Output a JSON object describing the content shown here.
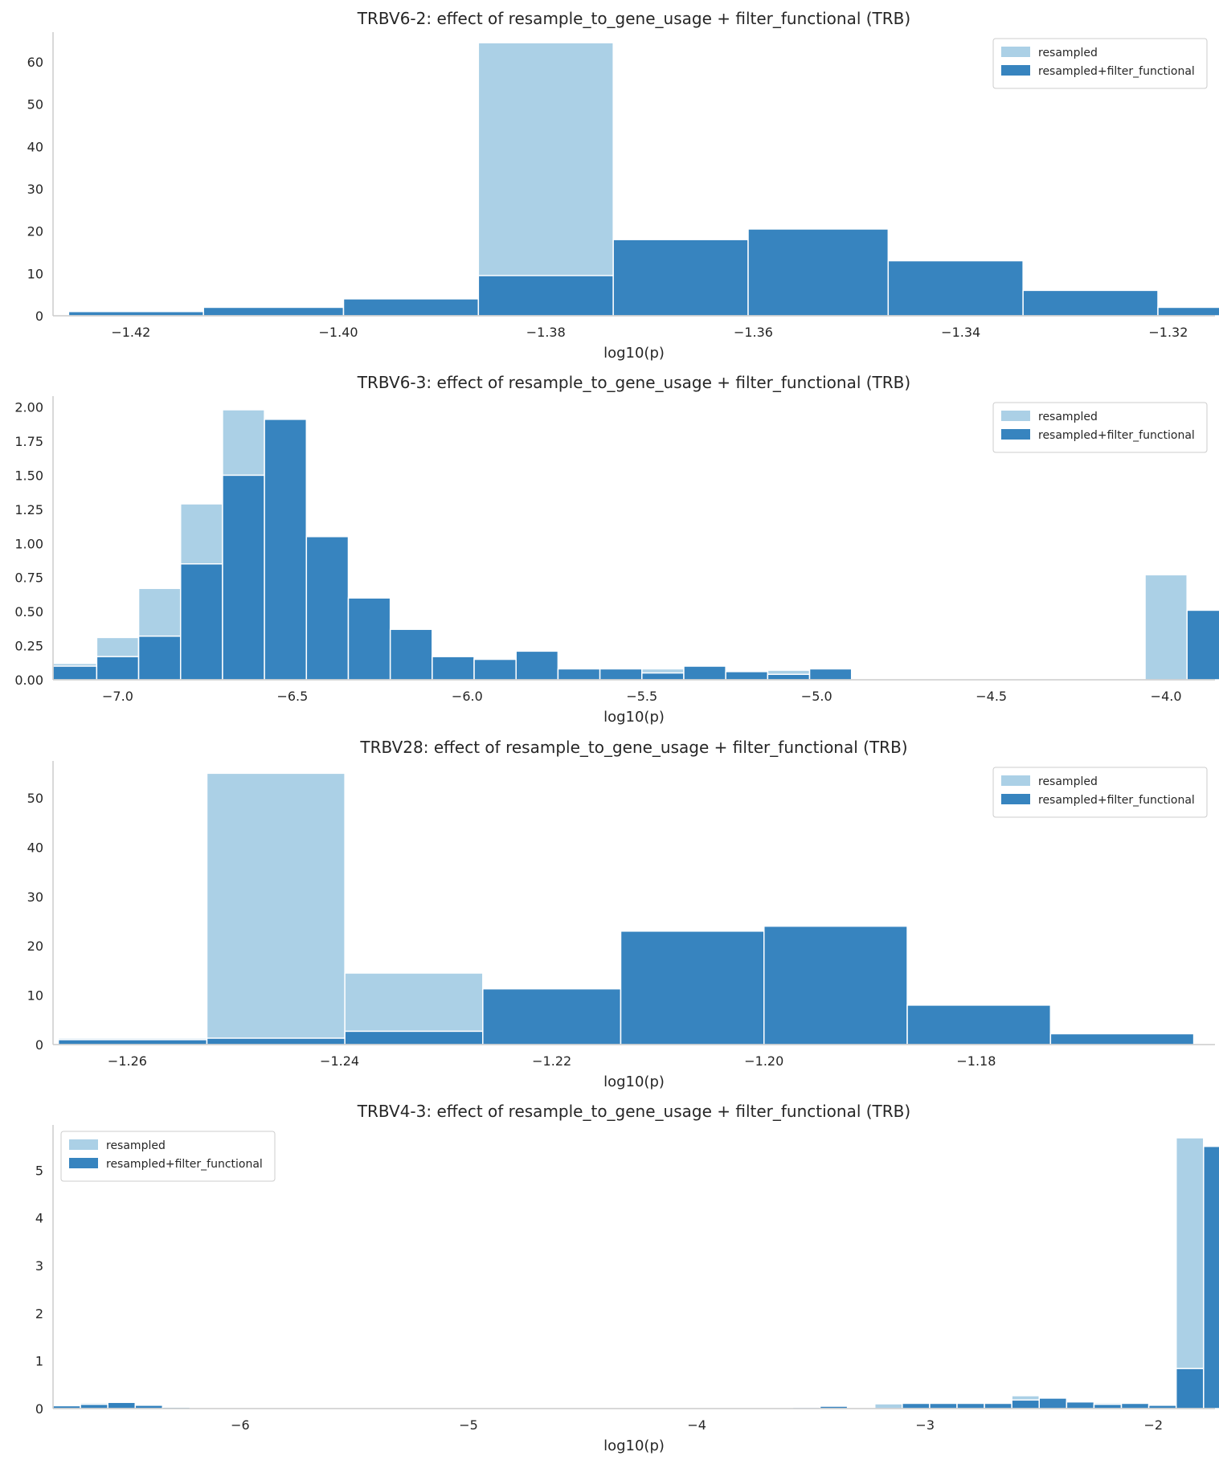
{
  "colors": {
    "resampled": "#abd0e6",
    "filtered": "#2f7fbc"
  },
  "chart_data": [
    {
      "type": "bar",
      "title": "TRBV6-2: effect of resample_to_gene_usage + filter_functional (TRB)",
      "xlabel": "log10(p)",
      "ylabel": "",
      "xlim": [
        -1.4275,
        -1.3155
      ],
      "ylim": [
        0,
        67
      ],
      "xticks": [
        -1.42,
        -1.4,
        -1.38,
        -1.36,
        -1.34,
        -1.32
      ],
      "xtick_labels": [
        "−1.42",
        "−1.40",
        "−1.38",
        "−1.36",
        "−1.34",
        "−1.32"
      ],
      "yticks": [
        0,
        10,
        20,
        30,
        40,
        50,
        60
      ],
      "ytick_labels": [
        "0",
        "10",
        "20",
        "30",
        "40",
        "50",
        "60"
      ],
      "legend_position": "top-right",
      "series": [
        {
          "name": "resampled",
          "bins": [
            [
              -1.3865,
              -1.3735,
              64.5
            ]
          ]
        },
        {
          "name": "resampled+filter_functional",
          "bins": [
            [
              -1.426,
              -1.413,
              1
            ],
            [
              -1.413,
              -1.3995,
              2
            ],
            [
              -1.3995,
              -1.3865,
              4
            ],
            [
              -1.3865,
              -1.3735,
              9.5
            ],
            [
              -1.3735,
              -1.3605,
              18
            ],
            [
              -1.3605,
              -1.347,
              20.5
            ],
            [
              -1.347,
              -1.334,
              13
            ],
            [
              -1.334,
              -1.321,
              6
            ],
            [
              -1.321,
              -1.308,
              2
            ]
          ]
        }
      ]
    },
    {
      "type": "bar",
      "title": "TRBV6-3: effect of resample_to_gene_usage + filter_functional (TRB)",
      "xlabel": "log10(p)",
      "ylabel": "",
      "xlim": [
        -7.185,
        -3.86
      ],
      "ylim": [
        0,
        2.08
      ],
      "xticks": [
        -7.0,
        -6.5,
        -6.0,
        -5.5,
        -5.0,
        -4.5,
        -4.0
      ],
      "xtick_labels": [
        "−7.0",
        "−6.5",
        "−6.0",
        "−5.5",
        "−5.0",
        "−4.5",
        "−4.0"
      ],
      "yticks": [
        0,
        0.25,
        0.5,
        0.75,
        1.0,
        1.25,
        1.5,
        1.75,
        2.0
      ],
      "ytick_labels": [
        "0.00",
        "0.25",
        "0.50",
        "0.75",
        "1.00",
        "1.25",
        "1.50",
        "1.75",
        "2.00"
      ],
      "legend_position": "top-right",
      "series": [
        {
          "name": "resampled",
          "bins": [
            [
              -7.185,
              -7.06,
              0.12
            ],
            [
              -7.06,
              -6.94,
              0.31
            ],
            [
              -6.94,
              -6.82,
              0.67
            ],
            [
              -6.82,
              -6.7,
              1.29
            ],
            [
              -6.7,
              -6.58,
              1.98
            ],
            [
              -5.5,
              -5.38,
              0.08
            ],
            [
              -5.14,
              -5.02,
              0.07
            ],
            [
              -4.06,
              -3.94,
              0.77
            ]
          ]
        },
        {
          "name": "resampled+filter_functional",
          "bins": [
            [
              -7.185,
              -7.06,
              0.1
            ],
            [
              -7.06,
              -6.94,
              0.17
            ],
            [
              -6.94,
              -6.82,
              0.32
            ],
            [
              -6.82,
              -6.7,
              0.85
            ],
            [
              -6.7,
              -6.58,
              1.5
            ],
            [
              -6.58,
              -6.46,
              1.91
            ],
            [
              -6.46,
              -6.34,
              1.05
            ],
            [
              -6.34,
              -6.22,
              0.6
            ],
            [
              -6.22,
              -6.1,
              0.37
            ],
            [
              -6.1,
              -5.98,
              0.17
            ],
            [
              -5.98,
              -5.86,
              0.15
            ],
            [
              -5.86,
              -5.74,
              0.21
            ],
            [
              -5.74,
              -5.62,
              0.08
            ],
            [
              -5.62,
              -5.5,
              0.08
            ],
            [
              -5.5,
              -5.38,
              0.05
            ],
            [
              -5.38,
              -5.26,
              0.1
            ],
            [
              -5.26,
              -5.14,
              0.06
            ],
            [
              -5.14,
              -5.02,
              0.04
            ],
            [
              -5.02,
              -4.9,
              0.08
            ],
            [
              -3.94,
              -3.82,
              0.51
            ]
          ]
        }
      ]
    },
    {
      "type": "bar",
      "title": "TRBV28: effect of resample_to_gene_usage + filter_functional (TRB)",
      "xlabel": "log10(p)",
      "ylabel": "",
      "xlim": [
        -1.267,
        -1.1575
      ],
      "ylim": [
        0,
        57.5
      ],
      "xticks": [
        -1.26,
        -1.24,
        -1.22,
        -1.2,
        -1.18
      ],
      "xtick_labels": [
        "−1.26",
        "−1.24",
        "−1.22",
        "−1.20",
        "−1.18"
      ],
      "yticks": [
        0,
        10,
        20,
        30,
        40,
        50
      ],
      "ytick_labels": [
        "0",
        "10",
        "20",
        "30",
        "40",
        "50"
      ],
      "legend_position": "top-right",
      "series": [
        {
          "name": "resampled",
          "bins": [
            [
              -1.2665,
              -1.2525,
              1.3
            ],
            [
              -1.2525,
              -1.2395,
              55
            ],
            [
              -1.2395,
              -1.2265,
              14.5
            ]
          ]
        },
        {
          "name": "resampled+filter_functional",
          "bins": [
            [
              -1.2665,
              -1.2525,
              1
            ],
            [
              -1.2525,
              -1.2395,
              1.3
            ],
            [
              -1.2395,
              -1.2265,
              2.7
            ],
            [
              -1.2265,
              -1.2135,
              11.3
            ],
            [
              -1.2135,
              -1.2,
              23
            ],
            [
              -1.2,
              -1.1865,
              24
            ],
            [
              -1.1865,
              -1.173,
              8
            ],
            [
              -1.173,
              -1.1595,
              2.2
            ]
          ]
        }
      ]
    },
    {
      "type": "bar",
      "title": "TRBV4-3: effect of resample_to_gene_usage + filter_functional (TRB)",
      "xlabel": "log10(p)",
      "ylabel": "",
      "xlim": [
        -6.82,
        -1.73
      ],
      "ylim": [
        0,
        5.95
      ],
      "xticks": [
        -6,
        -5,
        -4,
        -3,
        -2
      ],
      "xtick_labels": [
        "−6",
        "−5",
        "−4",
        "−3",
        "−2"
      ],
      "yticks": [
        0,
        1,
        2,
        3,
        4,
        5
      ],
      "ytick_labels": [
        "0",
        "1",
        "2",
        "3",
        "4",
        "5"
      ],
      "legend_position": "top-left",
      "series": [
        {
          "name": "resampled",
          "bins": [
            [
              -6.82,
              -6.7,
              0.05
            ],
            [
              -6.7,
              -6.58,
              0.12
            ],
            [
              -6.58,
              -6.46,
              0.13
            ],
            [
              -6.46,
              -6.34,
              0.08
            ],
            [
              -6.34,
              -6.22,
              0.04
            ],
            [
              -5.86,
              -5.74,
              0.02
            ],
            [
              -3.58,
              -3.46,
              0.03
            ],
            [
              -3.22,
              -3.1,
              0.1
            ],
            [
              -2.62,
              -2.5,
              0.27
            ],
            [
              -2.26,
              -2.14,
              0.12
            ],
            [
              -1.9,
              -1.78,
              5.68
            ]
          ]
        },
        {
          "name": "resampled+filter_functional",
          "bins": [
            [
              -6.82,
              -6.7,
              0.06
            ],
            [
              -6.7,
              -6.58,
              0.09
            ],
            [
              -6.58,
              -6.46,
              0.13
            ],
            [
              -6.46,
              -6.34,
              0.07
            ],
            [
              -6.34,
              -6.22,
              0.03
            ],
            [
              -3.46,
              -3.34,
              0.05
            ],
            [
              -3.1,
              -2.98,
              0.11
            ],
            [
              -2.98,
              -2.86,
              0.11
            ],
            [
              -2.86,
              -2.74,
              0.11
            ],
            [
              -2.74,
              -2.62,
              0.11
            ],
            [
              -2.62,
              -2.5,
              0.18
            ],
            [
              -2.5,
              -2.38,
              0.22
            ],
            [
              -2.38,
              -2.26,
              0.14
            ],
            [
              -2.26,
              -2.14,
              0.09
            ],
            [
              -2.14,
              -2.02,
              0.11
            ],
            [
              -2.02,
              -1.9,
              0.07
            ],
            [
              -1.9,
              -1.78,
              0.84
            ],
            [
              -1.78,
              -1.66,
              5.5
            ]
          ]
        }
      ]
    }
  ]
}
